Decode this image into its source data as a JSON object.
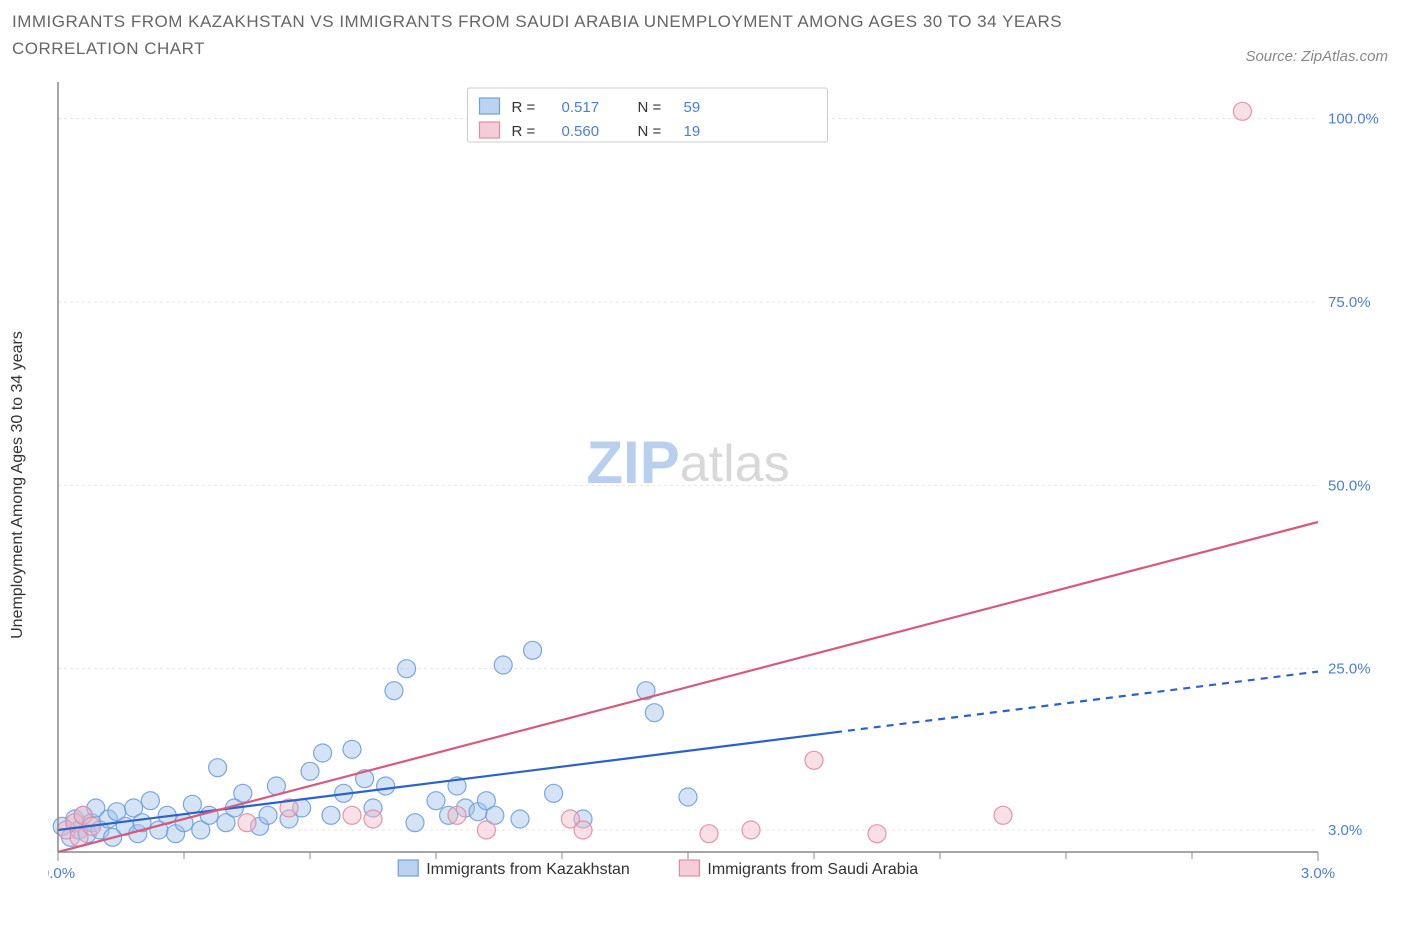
{
  "title_line1": "IMMIGRANTS FROM KAZAKHSTAN VS IMMIGRANTS FROM SAUDI ARABIA UNEMPLOYMENT AMONG AGES 30 TO 34 YEARS",
  "title_line2": "CORRELATION CHART",
  "source": "Source: ZipAtlas.com",
  "ylabel": "Unemployment Among Ages 30 to 34 years",
  "watermark_bold": "ZIP",
  "watermark_light": "atlas",
  "chart": {
    "type": "scatter",
    "background_color": "#ffffff",
    "grid_color": "#e5e5e5",
    "axis_color": "#888888",
    "xlim": [
      0.0,
      3.0
    ],
    "ylim": [
      0.0,
      105.0
    ],
    "x_ticks": [
      0.0,
      3.0
    ],
    "x_tick_labels": [
      "0.0%",
      "3.0%"
    ],
    "x_minor_ticks": [
      0.3,
      0.6,
      0.9,
      1.2,
      1.5,
      1.8,
      2.1,
      2.4,
      2.7
    ],
    "y_ticks": [
      3.0,
      25.0,
      50.0,
      75.0,
      100.0
    ],
    "y_tick_labels": [
      "3.0%",
      "25.0%",
      "50.0%",
      "75.0%",
      "100.0%"
    ],
    "series": [
      {
        "name": "Immigrants from Kazakhstan",
        "color": "#6f9fdc",
        "fill": "#9fc0e8",
        "fill_opacity": 0.45,
        "stroke_opacity": 0.9,
        "marker_radius": 9,
        "R": "0.517",
        "N": "59",
        "trend": {
          "slope": 7.2,
          "intercept": 3.0,
          "solid_xmax": 1.85,
          "dash_to": 3.0,
          "stroke": "#2b62c9",
          "width": 2.2
        },
        "points": [
          [
            0.01,
            3.5
          ],
          [
            0.03,
            2.0
          ],
          [
            0.04,
            4.5
          ],
          [
            0.05,
            3.0
          ],
          [
            0.06,
            5.0
          ],
          [
            0.07,
            2.5
          ],
          [
            0.08,
            4.0
          ],
          [
            0.09,
            6.0
          ],
          [
            0.1,
            3.0
          ],
          [
            0.12,
            4.5
          ],
          [
            0.13,
            2.0
          ],
          [
            0.14,
            5.5
          ],
          [
            0.16,
            3.5
          ],
          [
            0.18,
            6.0
          ],
          [
            0.19,
            2.5
          ],
          [
            0.2,
            4.0
          ],
          [
            0.22,
            7.0
          ],
          [
            0.24,
            3.0
          ],
          [
            0.26,
            5.0
          ],
          [
            0.28,
            2.5
          ],
          [
            0.3,
            4.0
          ],
          [
            0.32,
            6.5
          ],
          [
            0.34,
            3.0
          ],
          [
            0.36,
            5.0
          ],
          [
            0.38,
            11.5
          ],
          [
            0.4,
            4.0
          ],
          [
            0.42,
            6.0
          ],
          [
            0.44,
            8.0
          ],
          [
            0.48,
            3.5
          ],
          [
            0.5,
            5.0
          ],
          [
            0.52,
            9.0
          ],
          [
            0.55,
            4.5
          ],
          [
            0.58,
            6.0
          ],
          [
            0.6,
            11.0
          ],
          [
            0.63,
            13.5
          ],
          [
            0.65,
            5.0
          ],
          [
            0.68,
            8.0
          ],
          [
            0.7,
            14.0
          ],
          [
            0.73,
            10.0
          ],
          [
            0.75,
            6.0
          ],
          [
            0.78,
            9.0
          ],
          [
            0.8,
            22.0
          ],
          [
            0.83,
            25.0
          ],
          [
            0.85,
            4.0
          ],
          [
            0.9,
            7.0
          ],
          [
            0.93,
            5.0
          ],
          [
            0.95,
            9.0
          ],
          [
            0.97,
            6.0
          ],
          [
            1.0,
            5.5
          ],
          [
            1.02,
            7.0
          ],
          [
            1.04,
            5.0
          ],
          [
            1.06,
            25.5
          ],
          [
            1.1,
            4.5
          ],
          [
            1.13,
            27.5
          ],
          [
            1.18,
            8.0
          ],
          [
            1.25,
            4.5
          ],
          [
            1.4,
            22.0
          ],
          [
            1.42,
            19.0
          ],
          [
            1.5,
            7.5
          ]
        ]
      },
      {
        "name": "Immigrants from Saudi Arabia",
        "color": "#e38aa4",
        "fill": "#f1b8c8",
        "fill_opacity": 0.45,
        "stroke_opacity": 0.9,
        "marker_radius": 9,
        "R": "0.560",
        "N": "19",
        "trend": {
          "slope": 18.5,
          "intercept": -10.5,
          "solid_xmax": 3.0,
          "dash_to": 3.0,
          "stroke": "#d75a7c",
          "width": 2.2
        },
        "points": [
          [
            0.02,
            3.0
          ],
          [
            0.04,
            4.0
          ],
          [
            0.05,
            2.0
          ],
          [
            0.06,
            5.0
          ],
          [
            0.08,
            3.5
          ],
          [
            0.45,
            4.0
          ],
          [
            0.55,
            6.0
          ],
          [
            0.7,
            5.0
          ],
          [
            0.75,
            4.5
          ],
          [
            0.95,
            5.0
          ],
          [
            1.02,
            3.0
          ],
          [
            1.22,
            4.5
          ],
          [
            1.25,
            3.0
          ],
          [
            1.55,
            2.5
          ],
          [
            1.65,
            3.0
          ],
          [
            1.8,
            12.5
          ],
          [
            1.95,
            2.5
          ],
          [
            2.25,
            5.0
          ],
          [
            2.82,
            101.0
          ]
        ]
      }
    ],
    "bottom_legend": {
      "items": [
        {
          "label": "Immigrants from Kazakhstan",
          "fill": "#9fc0e8",
          "stroke": "#6f9fdc"
        },
        {
          "label": "Immigrants from Saudi Arabia",
          "fill": "#f1b8c8",
          "stroke": "#e38aa4"
        }
      ]
    },
    "stats_legend": {
      "R_label": "R =",
      "N_label": "N ="
    }
  }
}
